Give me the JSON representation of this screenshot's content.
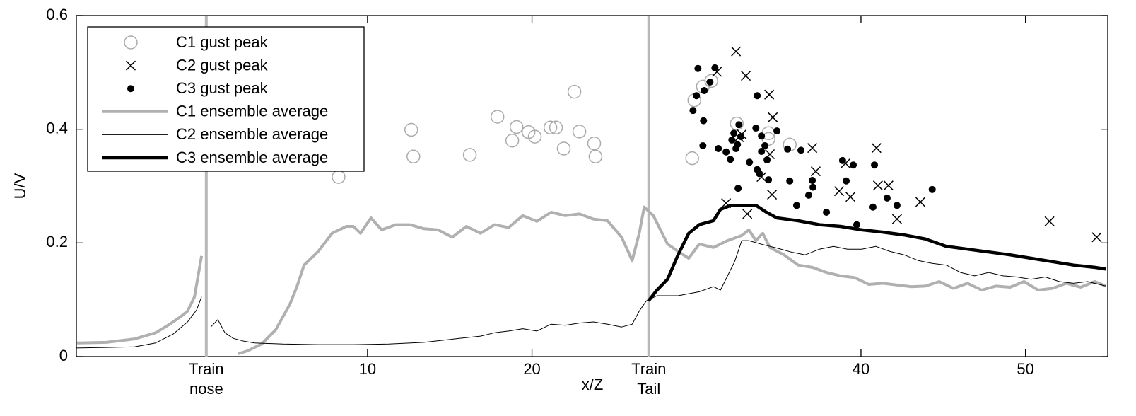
{
  "chart_data": {
    "type": "line",
    "xlabel": "x/Z",
    "ylabel": "U/V",
    "xlim": [
      -7.7,
      55
    ],
    "ylim": [
      0,
      0.6
    ],
    "xticks": [
      10,
      20,
      40,
      50
    ],
    "yticks": [
      0,
      0.2,
      0.4,
      0.6
    ],
    "legend": "upper left",
    "vlines": [
      {
        "x": 0.2,
        "label": [
          "Train",
          "nose"
        ],
        "color": "#b8b8b8"
      },
      {
        "x": 27.1,
        "label": [
          "Train",
          "Tail"
        ],
        "color": "#b8b8b8"
      }
    ],
    "series": [
      {
        "name": "C1 gust peak",
        "type": "scatter",
        "marker": "circle",
        "color": "#aaaaaa",
        "x": [
          8.24,
          12.66,
          12.79,
          16.22,
          17.9,
          19.06,
          18.8,
          19.79,
          20.17,
          21.12,
          21.46,
          21.93,
          22.58,
          22.88,
          23.78,
          23.86,
          29.74,
          29.87,
          30.39,
          30.9,
          32.45,
          34.38,
          34.38,
          35.67
        ],
        "values": [
          0.316,
          0.399,
          0.352,
          0.355,
          0.422,
          0.404,
          0.38,
          0.395,
          0.387,
          0.403,
          0.403,
          0.366,
          0.466,
          0.396,
          0.375,
          0.352,
          0.349,
          0.451,
          0.475,
          0.485,
          0.41,
          0.393,
          0.383,
          0.373
        ]
      },
      {
        "name": "C2 gust peak",
        "type": "scatter",
        "marker": "x",
        "color": "#000000",
        "x": [
          32.4,
          33.0,
          31.24,
          32.58,
          32.75,
          34.42,
          34.64,
          34.46,
          33.95,
          31.8,
          33.09,
          37.04,
          37.25,
          39.06,
          39.36,
          40.94,
          41.03,
          41.67,
          42.19,
          43.61,
          51.46,
          54.33,
          34.59,
          38.67
        ],
        "values": [
          0.537,
          0.494,
          0.501,
          0.386,
          0.391,
          0.461,
          0.421,
          0.356,
          0.316,
          0.27,
          0.251,
          0.367,
          0.326,
          0.34,
          0.281,
          0.367,
          0.301,
          0.301,
          0.242,
          0.272,
          0.238,
          0.21,
          0.285,
          0.291
        ]
      },
      {
        "name": "C3 gust peak",
        "type": "scatter",
        "marker": "dot",
        "color": "#000000",
        "x": [
          30.09,
          29.79,
          30.0,
          30.43,
          30.39,
          30.47,
          30.82,
          31.12,
          31.33,
          31.8,
          32.06,
          32.15,
          32.27,
          32.49,
          32.58,
          32.4,
          32.7,
          33.22,
          32.53,
          33.69,
          33.61,
          33.95,
          33.95,
          34.16,
          34.29,
          34.38,
          33.69,
          33.82,
          34.89,
          35.54,
          35.67,
          36.09,
          36.35,
          36.82,
          37.04,
          37.08,
          37.9,
          38.88,
          39.1,
          39.53,
          39.74,
          40.73,
          40.82,
          41.59,
          42.19,
          44.33
        ],
        "values": [
          0.507,
          0.433,
          0.459,
          0.415,
          0.371,
          0.468,
          0.483,
          0.508,
          0.366,
          0.36,
          0.347,
          0.381,
          0.393,
          0.373,
          0.408,
          0.366,
          0.387,
          0.342,
          0.296,
          0.459,
          0.402,
          0.388,
          0.361,
          0.371,
          0.346,
          0.311,
          0.329,
          0.322,
          0.397,
          0.365,
          0.309,
          0.266,
          0.363,
          0.284,
          0.31,
          0.298,
          0.254,
          0.345,
          0.309,
          0.337,
          0.232,
          0.263,
          0.337,
          0.279,
          0.266,
          0.294
        ]
      },
      {
        "name": "C1 ensemble average",
        "type": "line",
        "color": "#b0b0b0",
        "linewidth": 4,
        "x": [
          -7.68,
          -5.88,
          -4.16,
          -2.88,
          -2.02,
          -1.37,
          -0.94,
          -0.52,
          -0.09,
          1.0,
          2.15,
          2.7,
          3.56,
          4.42,
          5.28,
          5.71,
          6.14,
          7.0,
          7.85,
          8.71,
          9.14,
          9.57,
          10.21,
          10.86,
          11.72,
          12.58,
          13.43,
          14.29,
          15.15,
          16.01,
          16.87,
          17.73,
          18.58,
          19.44,
          20.3,
          21.16,
          22.02,
          22.88,
          23.73,
          24.59,
          25.45,
          26.09,
          26.52,
          26.82,
          27.38,
          27.81,
          28.24,
          28.88,
          29.53,
          30.17,
          31.03,
          31.89,
          32.75,
          33.18,
          33.61,
          34.03,
          34.46,
          35.32,
          36.18,
          37.04,
          37.9,
          38.76,
          39.61,
          40.47,
          41.33,
          42.19,
          43.05,
          43.91,
          44.76,
          45.62,
          46.48,
          47.34,
          48.2,
          49.06,
          49.91,
          50.77,
          51.63,
          52.49,
          53.35,
          54.21,
          54.9
        ],
        "values": [
          0.024,
          0.025,
          0.031,
          0.042,
          0.057,
          0.07,
          0.08,
          0.105,
          0.177,
          null,
          0.005,
          0.01,
          0.022,
          0.047,
          0.092,
          0.123,
          0.161,
          0.185,
          0.217,
          0.229,
          0.229,
          0.217,
          0.244,
          0.223,
          0.232,
          0.232,
          0.225,
          0.223,
          0.21,
          0.229,
          0.217,
          0.232,
          0.227,
          0.248,
          0.238,
          0.254,
          0.248,
          0.251,
          0.242,
          0.239,
          0.21,
          0.169,
          0.217,
          0.263,
          0.248,
          0.223,
          0.198,
          0.185,
          0.173,
          0.198,
          0.192,
          0.204,
          0.213,
          0.223,
          0.204,
          0.217,
          0.192,
          0.179,
          0.161,
          0.157,
          0.148,
          0.142,
          0.139,
          0.127,
          0.129,
          0.126,
          0.123,
          0.124,
          0.132,
          0.12,
          0.129,
          0.117,
          0.124,
          0.122,
          0.132,
          0.117,
          0.12,
          0.129,
          0.122,
          0.132,
          0.124
        ]
      },
      {
        "name": "C2 ensemble average",
        "type": "line",
        "color": "#000000",
        "linewidth": 1,
        "x": [
          -7.68,
          -5.88,
          -4.16,
          -2.88,
          -1.8,
          -0.94,
          -0.39,
          -0.09,
          0.2,
          0.47,
          0.9,
          1.33,
          1.85,
          2.49,
          3.13,
          4.85,
          7.0,
          9.14,
          11.29,
          13.43,
          15.58,
          16.87,
          17.73,
          18.58,
          19.44,
          20.3,
          21.16,
          22.02,
          22.88,
          23.73,
          24.59,
          25.45,
          26.09,
          26.52,
          26.95,
          27.6,
          28.88,
          30.17,
          31.03,
          31.46,
          31.89,
          32.32,
          32.75,
          33.18,
          34.03,
          34.89,
          35.75,
          36.61,
          37.47,
          38.33,
          39.18,
          40.04,
          40.9,
          41.76,
          42.62,
          43.48,
          44.33,
          45.19,
          46.05,
          46.91,
          47.77,
          48.63,
          49.48,
          50.34,
          51.2,
          52.06,
          52.92,
          53.78,
          54.9
        ],
        "values": [
          0.015,
          0.016,
          0.017,
          0.024,
          0.04,
          0.061,
          0.082,
          0.105,
          null,
          0.052,
          0.065,
          0.042,
          0.032,
          0.027,
          0.024,
          0.022,
          0.021,
          0.021,
          0.022,
          0.025,
          0.032,
          0.036,
          0.042,
          0.045,
          0.049,
          0.045,
          0.057,
          0.055,
          0.059,
          0.061,
          0.057,
          0.052,
          0.057,
          0.08,
          0.098,
          0.107,
          0.107,
          0.114,
          0.123,
          0.117,
          0.142,
          0.167,
          0.204,
          0.204,
          0.197,
          0.191,
          0.184,
          0.179,
          0.189,
          0.194,
          0.189,
          0.189,
          0.194,
          0.185,
          0.179,
          0.169,
          0.164,
          0.161,
          0.148,
          0.142,
          0.148,
          0.142,
          0.14,
          0.136,
          0.14,
          0.132,
          0.129,
          0.132,
          0.124
        ]
      },
      {
        "name": "C3 ensemble average",
        "type": "line",
        "color": "#000000",
        "linewidth": 4.5,
        "x": [
          27.08,
          27.6,
          28.24,
          28.88,
          29.53,
          30.17,
          31.03,
          31.46,
          32.1,
          32.75,
          33.61,
          34.25,
          34.89,
          36.18,
          37.47,
          38.76,
          40.04,
          41.33,
          42.62,
          43.91,
          45.19,
          46.48,
          47.77,
          49.06,
          50.34,
          51.63,
          52.92,
          54.21,
          54.9
        ],
        "values": [
          0.098,
          0.117,
          0.136,
          0.179,
          0.217,
          0.232,
          0.239,
          0.259,
          0.266,
          0.266,
          0.266,
          0.254,
          0.244,
          0.239,
          0.232,
          0.229,
          0.223,
          0.219,
          0.214,
          0.207,
          0.194,
          0.189,
          0.184,
          0.179,
          0.173,
          0.167,
          0.161,
          0.157,
          0.154
        ]
      }
    ]
  }
}
